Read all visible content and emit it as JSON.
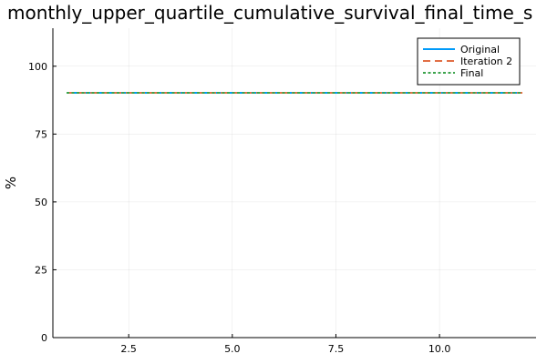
{
  "chart_data": {
    "type": "line",
    "title": "monthly_upper_quartile_cumulative_survival_final_time_s",
    "xlabel": "",
    "ylabel": "%",
    "xlim": [
      0.67,
      12.33
    ],
    "ylim": [
      0,
      114
    ],
    "x_ticks": [
      2.5,
      5.0,
      7.5,
      10.0
    ],
    "x_tick_labels": [
      "2.5",
      "5.0",
      "7.5",
      "10.0"
    ],
    "y_ticks": [
      0,
      25,
      50,
      75,
      100
    ],
    "y_tick_labels": [
      "0",
      "25",
      "50",
      "75",
      "100"
    ],
    "grid": true,
    "legend_position": "top-right",
    "x": [
      1,
      2,
      3,
      4,
      5,
      6,
      7,
      8,
      9,
      10,
      11,
      12
    ],
    "series": [
      {
        "name": "Original",
        "color": "#009af9",
        "style": "solid",
        "values": [
          90.2,
          90.2,
          90.2,
          90.2,
          90.2,
          90.2,
          90.2,
          90.2,
          90.2,
          90.2,
          90.2,
          90.2
        ]
      },
      {
        "name": "Iteration 2",
        "color": "#e26f46",
        "style": "dash",
        "values": [
          90.2,
          90.2,
          90.2,
          90.2,
          90.2,
          90.2,
          90.2,
          90.2,
          90.2,
          90.2,
          90.2,
          90.2
        ]
      },
      {
        "name": "Final",
        "color": "#3da44d",
        "style": "dot",
        "values": [
          90.2,
          90.2,
          90.2,
          90.2,
          90.2,
          90.2,
          90.2,
          90.2,
          90.2,
          90.2,
          90.2,
          90.2
        ]
      }
    ]
  }
}
